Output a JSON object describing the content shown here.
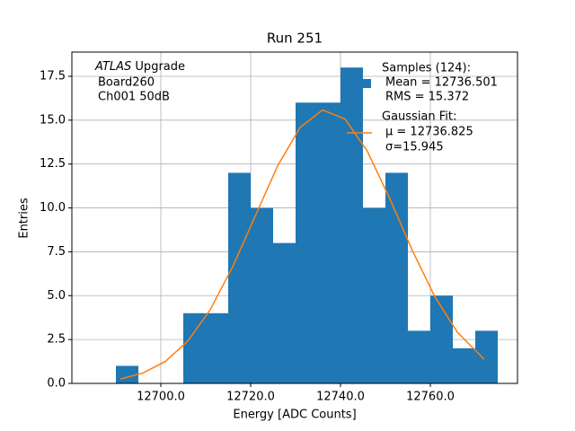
{
  "chart_data": {
    "type": "histogram",
    "title": "Run 251",
    "xlabel": "Energy [ADC Counts]",
    "ylabel": "Entries",
    "annotation": {
      "italic": "ATLAS",
      "text": "Upgrade",
      "lines": [
        "Board260",
        "Ch001 50dB"
      ]
    },
    "name": "Samples (124):",
    "stats": [
      "Mean = 12736.501",
      "RMS = 15.372"
    ],
    "color": "#1f77b4",
    "bins": [
      12690,
      12695,
      12700,
      12705,
      12710,
      12715,
      12720,
      12725,
      12730,
      12735,
      12740,
      12745,
      12750,
      12755,
      12760,
      12765,
      12770,
      12775
    ],
    "counts": [
      1,
      0,
      0,
      4,
      4,
      12,
      10,
      8,
      16,
      16,
      18,
      10,
      12,
      3,
      5,
      2,
      3
    ],
    "fit": {
      "type": "line",
      "name": "Gaussian Fit:",
      "params": [
        "μ = 12736.825",
        "σ=15.945"
      ],
      "color": "#ff7f0e",
      "x": [
        12691,
        12696,
        12701,
        12706,
        12711,
        12716,
        12721,
        12726,
        12731,
        12736,
        12741,
        12746,
        12751,
        12756,
        12761,
        12766,
        12772
      ],
      "values": [
        0.25,
        0.59,
        1.25,
        2.41,
        4.2,
        6.65,
        9.53,
        12.39,
        14.59,
        15.58,
        15.07,
        13.22,
        10.51,
        7.57,
        4.94,
        2.92,
        1.37
      ]
    },
    "xlim": [
      12680.2,
      12779.4
    ],
    "ylim": [
      0,
      18.88
    ],
    "xticks": [
      {
        "value": 12700,
        "label": "12700.0"
      },
      {
        "value": 12720,
        "label": "12720.0"
      },
      {
        "value": 12740,
        "label": "12740.0"
      },
      {
        "value": 12760,
        "label": "12760.0"
      }
    ],
    "yticks": [
      {
        "value": 0,
        "label": "0.0"
      },
      2.5,
      {
        "value": 5,
        "label": "5.0"
      },
      7.5,
      {
        "value": 10,
        "label": "10.0"
      },
      12.5,
      {
        "value": 15,
        "label": "15.0"
      },
      17.5
    ],
    "grid": true,
    "legend": "upper right"
  }
}
